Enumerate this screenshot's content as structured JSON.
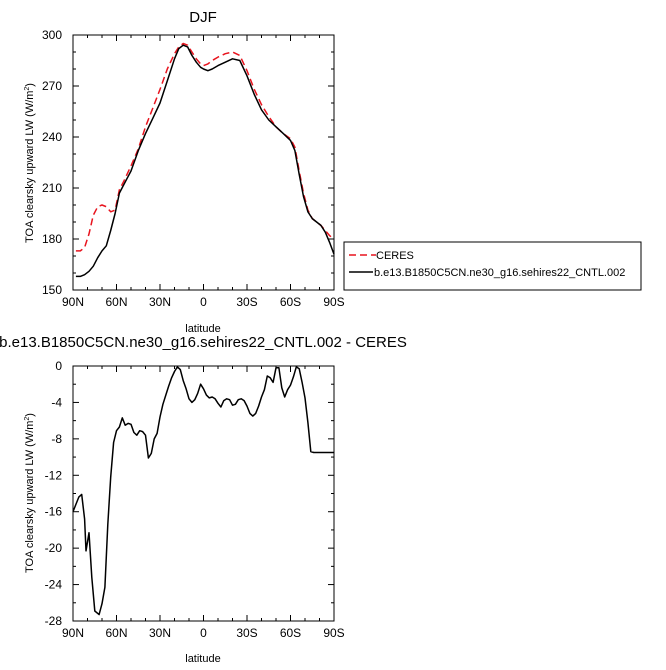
{
  "chart_data": [
    {
      "type": "line",
      "title": "DJF",
      "xlabel": "latitude",
      "ylabel_main": "TOA clearsky upward LW (W/m",
      "ylabel_sup": "2",
      "ylabel_close": ")",
      "xlim": [
        90,
        -90
      ],
      "ylim": [
        150,
        300
      ],
      "xticks": [
        90,
        60,
        30,
        0,
        -30,
        -60,
        -90
      ],
      "xtick_labels": [
        "90N",
        "60N",
        "30N",
        "0",
        "30S",
        "60S",
        "90S"
      ],
      "yticks": [
        150,
        180,
        210,
        240,
        270,
        300
      ],
      "ytick_labels": [
        "150",
        "180",
        "210",
        "240",
        "270",
        "300"
      ],
      "legend_position": "right",
      "series": [
        {
          "name": "CERES",
          "color": "#e8141e",
          "dash": "dashed",
          "x": [
            88,
            85,
            82,
            79,
            76,
            73,
            70,
            67,
            64,
            61,
            58,
            55,
            50,
            45,
            40,
            35,
            30,
            25,
            20,
            17,
            14,
            11,
            8,
            5,
            2,
            0,
            -3,
            -6,
            -10,
            -15,
            -20,
            -25,
            -30,
            -35,
            -40,
            -45,
            -50,
            -55,
            -60,
            -63,
            -66,
            -69,
            -72,
            -75,
            -78,
            -81,
            -84,
            -87,
            -90
          ],
          "y": [
            173,
            173,
            175,
            183,
            194,
            199,
            200,
            199,
            196,
            197,
            209,
            214,
            223,
            233,
            246,
            257,
            268,
            280,
            289,
            293,
            295,
            294,
            290,
            286,
            283,
            282,
            283,
            285,
            287,
            289,
            290,
            288,
            279,
            268,
            259,
            252,
            246,
            242,
            239,
            234,
            220,
            207,
            197,
            192,
            190,
            188,
            185,
            182,
            180
          ]
        },
        {
          "name": "b.e13.B1850C5CN.ne30_g16.sehires22_CNTL.002",
          "color": "#000000",
          "dash": "solid",
          "x": [
            88,
            85,
            82,
            79,
            76,
            73,
            70,
            67,
            64,
            61,
            58,
            55,
            50,
            45,
            40,
            35,
            30,
            25,
            20,
            17,
            14,
            11,
            8,
            5,
            2,
            0,
            -3,
            -6,
            -10,
            -15,
            -20,
            -25,
            -30,
            -35,
            -40,
            -45,
            -50,
            -55,
            -60,
            -63,
            -66,
            -69,
            -72,
            -75,
            -78,
            -81,
            -84,
            -87,
            -90
          ],
          "y": [
            158,
            158,
            159,
            161,
            164,
            169,
            173,
            176,
            185,
            195,
            207,
            212,
            220,
            232,
            242,
            251,
            260,
            273,
            286,
            292,
            294,
            293,
            288,
            284,
            281,
            280,
            279,
            280,
            282,
            284,
            286,
            285,
            276,
            265,
            256,
            250,
            246,
            242,
            238,
            232,
            218,
            205,
            196,
            192,
            190,
            188,
            184,
            178,
            171
          ]
        }
      ]
    },
    {
      "type": "line",
      "title": "b.e13.B1850C5CN.ne30_g16.sehires22_CNTL.002 - CERES",
      "xlabel": "latitude",
      "ylabel_main": "TOA clearsky upward LW (W/m",
      "ylabel_sup": "2",
      "ylabel_close": ")",
      "xlim": [
        90,
        -90
      ],
      "ylim": [
        -28,
        0
      ],
      "xticks": [
        90,
        60,
        30,
        0,
        -30,
        -60,
        -90
      ],
      "xtick_labels": [
        "90N",
        "60N",
        "30N",
        "0",
        "30S",
        "60S",
        "90S"
      ],
      "yticks": [
        -28,
        -24,
        -20,
        -16,
        -12,
        -8,
        -4,
        0
      ],
      "ytick_labels": [
        "-28",
        "-24",
        "-20",
        "-16",
        "-12",
        "-8",
        "-4",
        "0"
      ],
      "series": [
        {
          "name": "",
          "color": "#000000",
          "dash": "solid",
          "x": [
            90,
            88,
            86,
            84,
            82,
            81,
            79,
            77,
            75,
            72,
            70,
            68,
            66,
            64,
            62,
            60,
            58,
            56,
            54,
            52,
            50,
            48,
            46,
            44,
            42,
            40,
            38,
            36,
            34,
            32,
            30,
            28,
            26,
            24,
            22,
            20,
            18,
            16,
            14,
            12,
            10,
            8,
            6,
            4,
            2,
            0,
            -2,
            -4,
            -6,
            -8,
            -10,
            -12,
            -14,
            -16,
            -18,
            -20,
            -22,
            -24,
            -26,
            -28,
            -30,
            -32,
            -34,
            -36,
            -38,
            -40,
            -42,
            -44,
            -46,
            -48,
            -50,
            -52,
            -54,
            -56,
            -58,
            -60,
            -62,
            -64,
            -66,
            -68,
            -70,
            -72,
            -74,
            -76,
            -78,
            -80,
            -82,
            -84,
            -86,
            -88,
            -90
          ],
          "y": [
            -16,
            -15.2,
            -14.4,
            -14.1,
            -16.8,
            -20.3,
            -18.3,
            -23.2,
            -26.9,
            -27.3,
            -26.1,
            -24.3,
            -17.4,
            -12.2,
            -8.4,
            -7.1,
            -6.7,
            -5.7,
            -6.5,
            -6.3,
            -6.4,
            -7.3,
            -7.6,
            -7.1,
            -7.2,
            -7.6,
            -10.1,
            -9.6,
            -8,
            -7.4,
            -5.6,
            -4.2,
            -3.2,
            -2.2,
            -1.3,
            -0.6,
            -0.1,
            -0.4,
            -1.6,
            -2.5,
            -3.6,
            -4,
            -3.7,
            -3,
            -2,
            -2.5,
            -3.2,
            -3.5,
            -3.4,
            -3.6,
            -4.1,
            -4.5,
            -3.8,
            -3.6,
            -3.7,
            -4.3,
            -4.2,
            -3.7,
            -3.6,
            -3.8,
            -4.4,
            -5.2,
            -5.5,
            -5.2,
            -4.4,
            -3.4,
            -2.6,
            -1.1,
            -1.3,
            -1.8,
            -0.2,
            -0.2,
            -2.4,
            -3.4,
            -2.6,
            -2.1,
            -1.2,
            -0.1,
            -0.3,
            -1.8,
            -3.5,
            -6.2,
            -9.4,
            -9.5,
            -9.5,
            -9.5,
            -9.5,
            -9.5,
            -9.5,
            -9.5,
            -9.5
          ]
        }
      ]
    }
  ]
}
